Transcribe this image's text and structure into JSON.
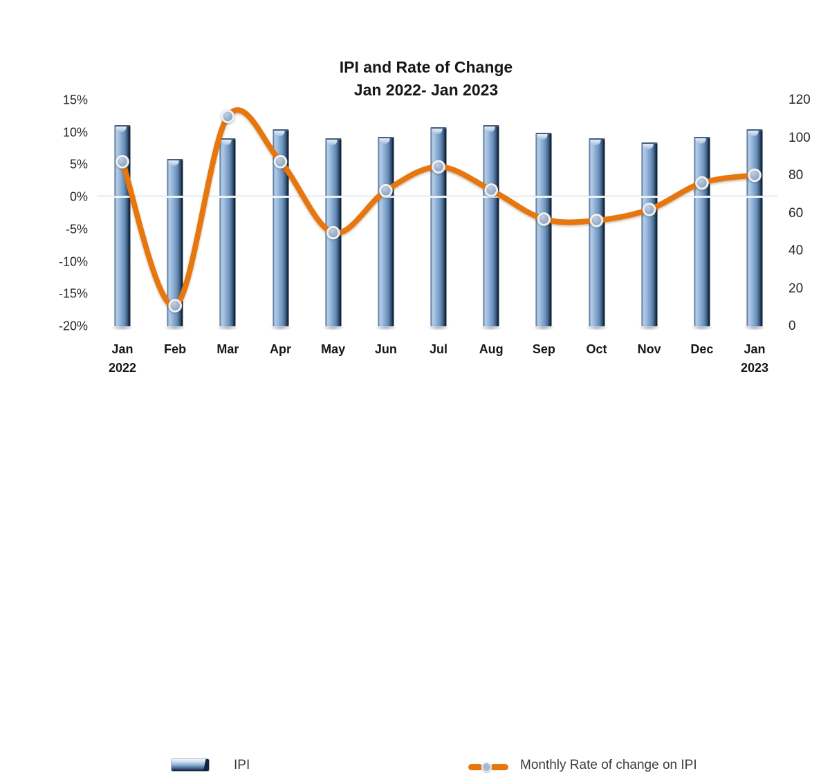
{
  "title": {
    "line1": "IPI and Rate of Change",
    "line2": "Jan 2022- Jan 2023"
  },
  "legend": {
    "ipi": "IPI",
    "rate": "Monthly Rate of change on IPI"
  },
  "x_labels": [
    {
      "line1": "Jan",
      "line2": "2022"
    },
    {
      "line1": "Feb"
    },
    {
      "line1": "Mar"
    },
    {
      "line1": "Apr"
    },
    {
      "line1": "May"
    },
    {
      "line1": "Jun"
    },
    {
      "line1": "Jul"
    },
    {
      "line1": "Aug"
    },
    {
      "line1": "Sep"
    },
    {
      "line1": "Oct"
    },
    {
      "line1": "Nov"
    },
    {
      "line1": "Dec"
    },
    {
      "line1": "Jan",
      "line2": "2023"
    }
  ],
  "colors": {
    "line_orange": "#e8760e",
    "marker_fill_light": "#c2d0e2",
    "marker_fill_dark": "#8099b8",
    "marker_ring": "#eef1f4",
    "bar_light": "#a6c2e0",
    "bar_mid": "#7fa3cb",
    "bar_dark": "#0d1d31",
    "gridline": "#bcd4ea",
    "text": "#161616"
  },
  "chart_data": {
    "type": "combo-bar-line",
    "title": "IPI and Rate of Change",
    "subtitle": "Jan 2022- Jan 2023",
    "categories": [
      "Jan 2022",
      "Feb",
      "Mar",
      "Apr",
      "May",
      "Jun",
      "Jul",
      "Aug",
      "Sep",
      "Oct",
      "Nov",
      "Dec",
      "Jan 2023"
    ],
    "series": [
      {
        "name": "IPI",
        "type": "bar",
        "axis": "right",
        "values": [
          106,
          88,
          99,
          104,
          99,
          100,
          105,
          106,
          102,
          99,
          97,
          100,
          104
        ]
      },
      {
        "name": "Monthly Rate of change on IPI",
        "type": "line",
        "axis": "left",
        "unit": "%",
        "values": [
          5.5,
          -16.8,
          12.5,
          5.5,
          -5.5,
          1.0,
          4.7,
          1.1,
          -3.4,
          -3.6,
          -1.9,
          2.2,
          3.4
        ]
      }
    ],
    "left_axis": {
      "min": -20,
      "max": 15,
      "format": "percent",
      "tick_labels": [
        "15%",
        "10%",
        "5%",
        "0%",
        "-5%",
        "-10%",
        "-15%",
        "-20%"
      ]
    },
    "right_axis": {
      "min": 0,
      "max": 120,
      "tick_labels": [
        "120",
        "100",
        "80",
        "60",
        "40",
        "20",
        "0"
      ]
    },
    "grid": "zero-line-only",
    "line_smooth": true,
    "legend_position": "bottom"
  }
}
